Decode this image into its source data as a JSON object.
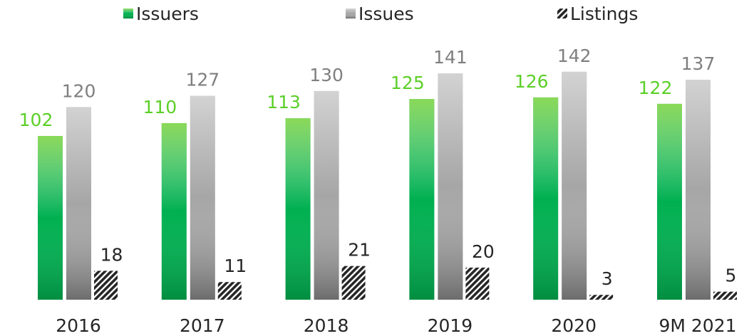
{
  "chart_data": {
    "type": "bar",
    "categories": [
      "2016",
      "2017",
      "2018",
      "2019",
      "2020",
      "9M 2021"
    ],
    "series": [
      {
        "name": "Issuers",
        "color": "#00b050",
        "values": [
          102,
          110,
          113,
          125,
          126,
          122
        ]
      },
      {
        "name": "Issues",
        "color": "#a6a6a6",
        "values": [
          120,
          127,
          130,
          141,
          142,
          137
        ]
      },
      {
        "name": "Listings",
        "color": "#262626",
        "values": [
          18,
          11,
          21,
          20,
          3,
          5
        ]
      }
    ]
  }
}
